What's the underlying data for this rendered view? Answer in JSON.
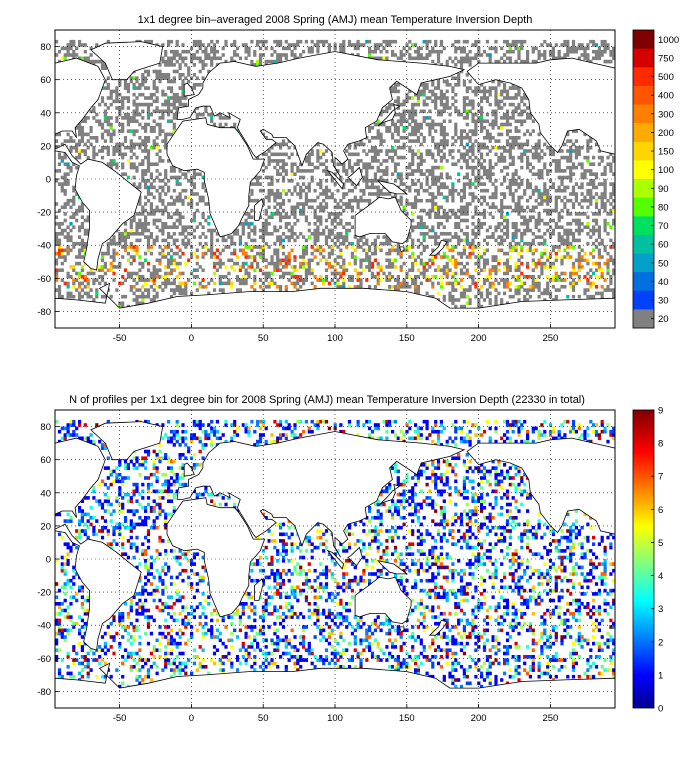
{
  "chart_data": [
    {
      "type": "heatmap",
      "title": "1x1 degree bin–averaged 2008 Spring (AMJ) mean Temperature Inversion Depth",
      "xlim": [
        -95,
        295
      ],
      "ylim": [
        -90,
        90
      ],
      "xticks": [
        "-50",
        "0",
        "50",
        "100",
        "150",
        "200",
        "250"
      ],
      "xtick_values": [
        -50,
        0,
        50,
        100,
        150,
        200,
        250
      ],
      "yticks": [
        "80",
        "60",
        "40",
        "20",
        "0",
        "-20",
        "-40",
        "-60",
        "-80"
      ],
      "ytick_values": [
        80,
        60,
        40,
        20,
        0,
        -20,
        -40,
        -60,
        -80
      ],
      "grid": true,
      "colorbar": {
        "labels": [
          "1000",
          "750",
          "500",
          "400",
          "300",
          "200",
          "150",
          "100",
          "90",
          "80",
          "70",
          "60",
          "50",
          "40",
          "30",
          "20"
        ],
        "colors": [
          "#800000",
          "#d40000",
          "#ff2a00",
          "#ff5500",
          "#ff8000",
          "#ffaa00",
          "#ffd400",
          "#ffff00",
          "#aaff00",
          "#55ff00",
          "#00e060",
          "#00c0a0",
          "#00a0c8",
          "#0070e0",
          "#0040ff",
          "#808080"
        ]
      },
      "land_color": "#ffffff",
      "dominant_value_color": "#808080"
    },
    {
      "type": "heatmap",
      "title": "N of profiles per 1x1 degree bin for 2008 Spring (AMJ) mean Temperature Inversion Depth  (22330 in total)",
      "xlim": [
        -95,
        295
      ],
      "ylim": [
        -90,
        90
      ],
      "xticks": [
        "-50",
        "0",
        "50",
        "100",
        "150",
        "200",
        "250"
      ],
      "xtick_values": [
        -50,
        0,
        50,
        100,
        150,
        200,
        250
      ],
      "yticks": [
        "80",
        "60",
        "40",
        "20",
        "0",
        "-20",
        "-40",
        "-60",
        "-80"
      ],
      "ytick_values": [
        80,
        60,
        40,
        20,
        0,
        -20,
        -40,
        -60,
        -80
      ],
      "grid": true,
      "total_profiles": 22330,
      "colorbar": {
        "labels": [
          "9",
          "8",
          "7",
          "6",
          "5",
          "4",
          "3",
          "2",
          "1",
          "0"
        ],
        "label_values": [
          9,
          8,
          7,
          6,
          5,
          4,
          3,
          2,
          1,
          0
        ],
        "range": [
          0,
          9
        ],
        "colormap": "jet"
      }
    }
  ]
}
